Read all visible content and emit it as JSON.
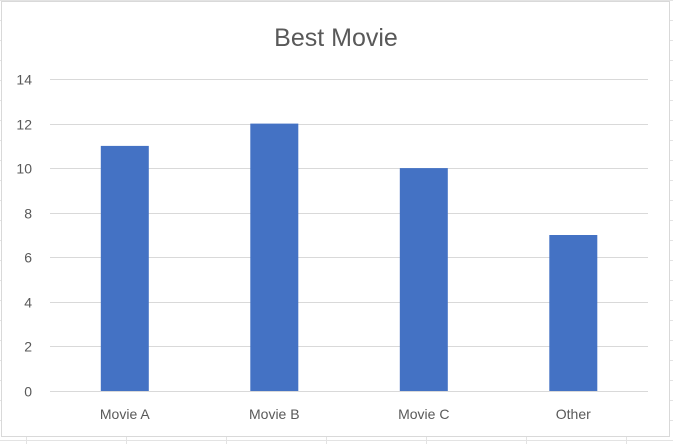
{
  "chart_data": {
    "type": "bar",
    "title": "Best Movie",
    "categories": [
      "Movie A",
      "Movie B",
      "Movie C",
      "Other"
    ],
    "values": [
      11,
      12,
      10,
      7
    ],
    "xlabel": "",
    "ylabel": "",
    "ylim": [
      0,
      14
    ],
    "yticks": [
      0,
      2,
      4,
      6,
      8,
      10,
      12,
      14
    ],
    "grid": true,
    "legend": "none",
    "bar_color": "#4472c4",
    "grid_color": "#d9d9d9",
    "text_color": "#595959"
  }
}
